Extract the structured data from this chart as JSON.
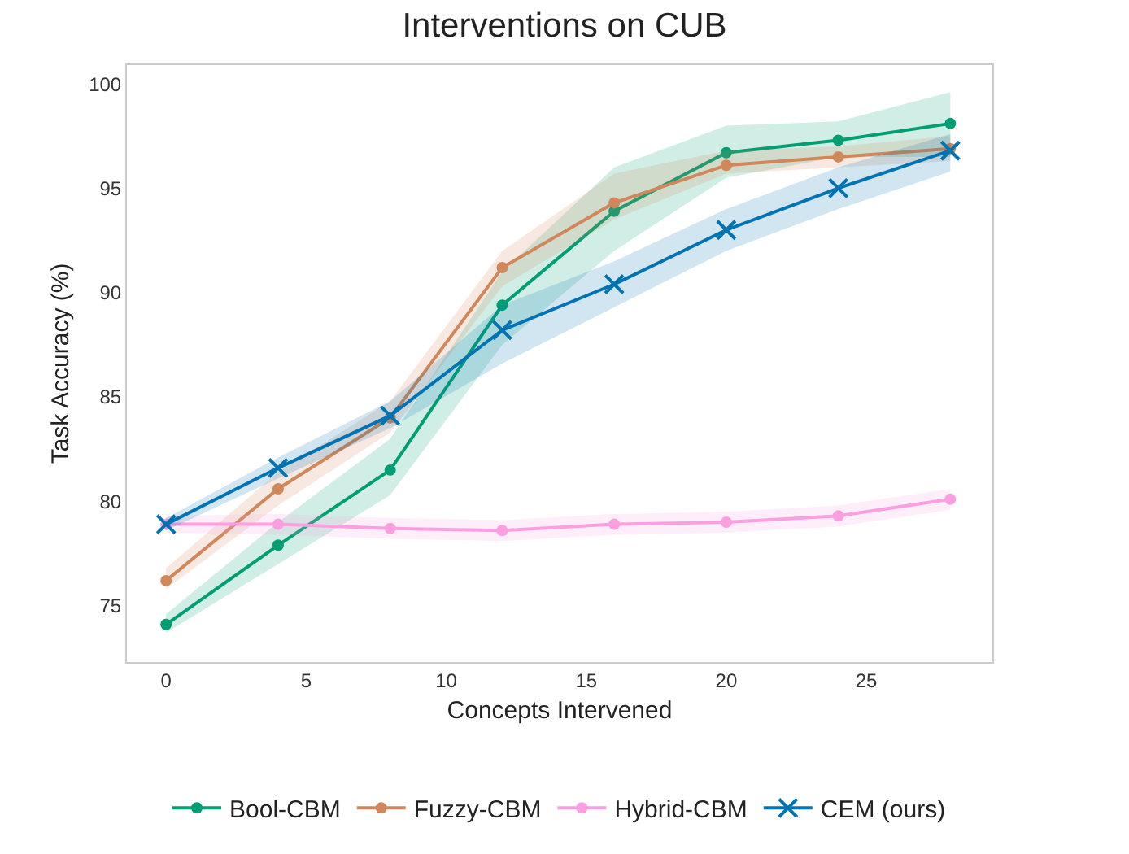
{
  "chart_data": {
    "type": "line",
    "title": "Interventions on CUB",
    "xlabel": "Concepts Intervened",
    "ylabel": "Task Accuracy (%)",
    "x": [
      0,
      4,
      8,
      12,
      16,
      20,
      24,
      28
    ],
    "xlim": [
      -1.4,
      29.5
    ],
    "xticks": [
      0,
      5,
      10,
      15,
      20,
      25
    ],
    "ylim": [
      72.3,
      100.9
    ],
    "yticks": [
      75,
      80,
      85,
      90,
      95,
      100
    ],
    "grid": false,
    "legend": "bottom",
    "line_style": "solid",
    "series": [
      {
        "name": "Bool-CBM",
        "color": "#029e73",
        "marker": "circle",
        "values": [
          74.1,
          77.9,
          81.5,
          89.4,
          93.9,
          96.7,
          97.3,
          98.1
        ],
        "lower": [
          73.7,
          77.0,
          80.3,
          87.5,
          92.0,
          95.5,
          96.5,
          96.5
        ],
        "upper": [
          74.6,
          79.0,
          83.0,
          91.0,
          96.0,
          98.0,
          98.2,
          99.6
        ]
      },
      {
        "name": "Fuzzy-CBM",
        "color": "#d0875a",
        "marker": "circle",
        "values": [
          76.2,
          80.6,
          84.0,
          91.2,
          94.3,
          96.1,
          96.5,
          96.9
        ],
        "lower": [
          75.8,
          79.8,
          83.3,
          90.3,
          93.5,
          95.7,
          96.0,
          96.3
        ],
        "upper": [
          76.8,
          81.4,
          84.8,
          92.0,
          95.7,
          96.8,
          97.0,
          97.5
        ]
      },
      {
        "name": "Hybrid-CBM",
        "color": "#fb9fe0",
        "marker": "circle",
        "values": [
          78.9,
          78.9,
          78.7,
          78.6,
          78.9,
          79.0,
          79.3,
          80.1
        ],
        "lower": [
          78.5,
          78.4,
          78.2,
          78.1,
          78.4,
          78.5,
          78.8,
          79.6
        ],
        "upper": [
          79.3,
          79.4,
          79.2,
          79.1,
          79.4,
          79.5,
          79.8,
          80.6
        ]
      },
      {
        "name": "CEM (ours)",
        "color": "#0173b2",
        "marker": "cross",
        "values": [
          78.9,
          81.6,
          84.1,
          88.2,
          90.4,
          93.0,
          95.0,
          96.8
        ],
        "lower": [
          78.6,
          81.1,
          83.5,
          86.6,
          89.3,
          92.0,
          94.0,
          95.8
        ],
        "upper": [
          79.2,
          82.1,
          84.8,
          89.4,
          91.5,
          94.0,
          96.0,
          97.6
        ]
      }
    ]
  }
}
